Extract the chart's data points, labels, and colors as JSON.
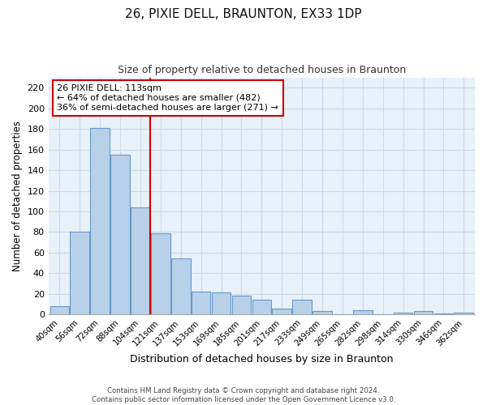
{
  "title": "26, PIXIE DELL, BRAUNTON, EX33 1DP",
  "subtitle": "Size of property relative to detached houses in Braunton",
  "xlabel": "Distribution of detached houses by size in Braunton",
  "ylabel": "Number of detached properties",
  "bar_labels": [
    "40sqm",
    "56sqm",
    "72sqm",
    "88sqm",
    "104sqm",
    "121sqm",
    "137sqm",
    "153sqm",
    "169sqm",
    "185sqm",
    "201sqm",
    "217sqm",
    "233sqm",
    "249sqm",
    "265sqm",
    "282sqm",
    "298sqm",
    "314sqm",
    "330sqm",
    "346sqm",
    "362sqm"
  ],
  "bar_values": [
    8,
    80,
    181,
    155,
    104,
    79,
    54,
    22,
    21,
    18,
    14,
    6,
    14,
    3,
    0,
    4,
    0,
    2,
    3,
    1,
    2
  ],
  "bar_color": "#b8d0e8",
  "bar_edgecolor": "#6699cc",
  "vline_index": 5,
  "vline_color": "#cc0000",
  "ylim": [
    0,
    230
  ],
  "yticks": [
    0,
    20,
    40,
    60,
    80,
    100,
    120,
    140,
    160,
    180,
    200,
    220
  ],
  "annotation_title": "26 PIXIE DELL: 113sqm",
  "annotation_line1": "← 64% of detached houses are smaller (482)",
  "annotation_line2": "36% of semi-detached houses are larger (271) →",
  "annotation_box_facecolor": "#ffffff",
  "annotation_box_edgecolor": "#cc0000",
  "grid_color": "#c8daea",
  "bg_color": "#e8f0f8",
  "footer1": "Contains HM Land Registry data © Crown copyright and database right 2024.",
  "footer2": "Contains public sector information licensed under the Open Government Licence v3.0."
}
